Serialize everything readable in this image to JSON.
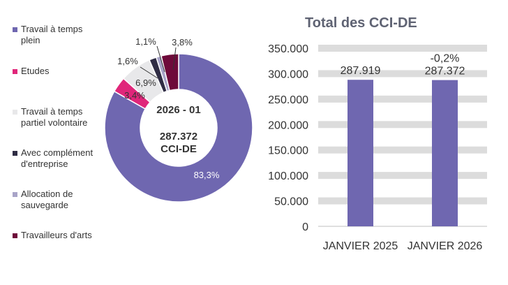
{
  "colors": {
    "plein": "#6f67b0",
    "etudes": "#e0267a",
    "partiel": "#e8e8ea",
    "complement": "#2f2c44",
    "sauvegarde": "#a8a4c8",
    "arts": "#6e0a3a",
    "bar": "#6f67b0",
    "grid": "#dcdcdc",
    "text": "#333333",
    "title": "#5f6373"
  },
  "center": {
    "line1": "2026 - 01",
    "line2": "287.372",
    "line3": "CCI-DE"
  },
  "chart_data": [
    {
      "type": "pie",
      "donut": true,
      "slices": [
        {
          "name": "Travail à temps plein",
          "value": 83.3,
          "label": "83,3%",
          "color_key": "plein"
        },
        {
          "name": "Etudes",
          "value": 3.4,
          "label": "3,4%",
          "color_key": "etudes"
        },
        {
          "name": "Travail à temps partiel volontaire",
          "value": 6.9,
          "label": "6,9%",
          "color_key": "partiel"
        },
        {
          "name": "Avec complément d'entreprise",
          "value": 1.6,
          "label": "1,6%",
          "color_key": "complement"
        },
        {
          "name": "Allocation de sauvegarde",
          "value": 1.1,
          "label": "1,1%",
          "color_key": "sauvegarde"
        },
        {
          "name": "Travailleurs d'arts",
          "value": 3.8,
          "label": "3,8%",
          "color_key": "arts"
        }
      ],
      "legend_placement": "left",
      "legend": [
        {
          "label": "Travail à temps\nplein",
          "color_key": "plein"
        },
        {
          "label": "Etudes",
          "color_key": "etudes"
        },
        {
          "label": "Travail à temps\npartiel volontaire",
          "color_key": "partiel"
        },
        {
          "label": "Avec complément\nd'entreprise",
          "color_key": "complement"
        },
        {
          "label": "Allocation de\nsauvegarde",
          "color_key": "sauvegarde"
        },
        {
          "label": "Travailleurs d'arts",
          "color_key": "arts"
        }
      ]
    },
    {
      "type": "bar",
      "title": "Total des CCI-DE",
      "categories": [
        "JANVIER 2025",
        "JANVIER 2026"
      ],
      "values": [
        287919,
        287372
      ],
      "data_labels": [
        "287.919",
        "287.372"
      ],
      "change_labels": [
        "",
        "-0,2%"
      ],
      "ylim": [
        0,
        350000
      ],
      "yticks": [
        0,
        50000,
        100000,
        150000,
        200000,
        250000,
        300000,
        350000
      ],
      "ytick_labels": [
        "0",
        "50.000",
        "100.000",
        "150.000",
        "200.000",
        "250.000",
        "300.000",
        "350.000"
      ],
      "grid": true,
      "grid_style": "bands"
    }
  ]
}
